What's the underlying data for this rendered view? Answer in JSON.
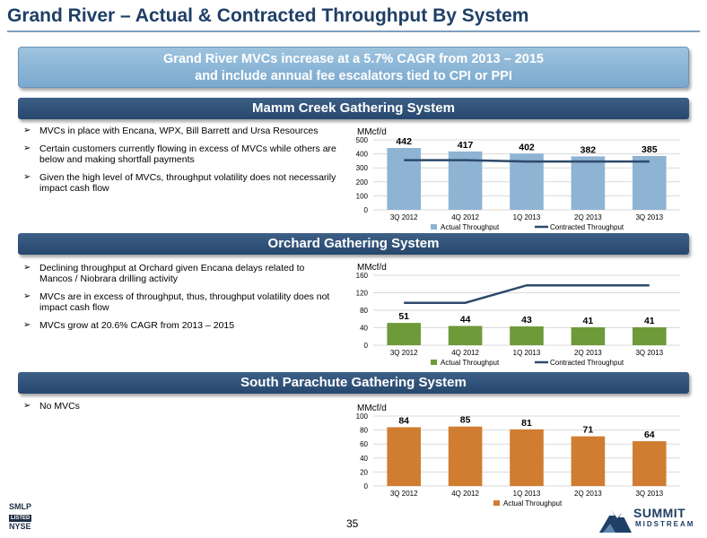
{
  "page": {
    "title": "Grand River – Actual & Contracted Throughput By System",
    "banner": {
      "line1": "Grand River MVCs increase at a 5.7% CAGR from 2013 – 2015",
      "line2": "and include annual fee escalators tied to CPI or PPI"
    },
    "page_number": "35"
  },
  "sections": [
    {
      "title": "Mamm Creek Gathering System",
      "bullets": [
        "MVCs in place with Encana, WPX, Bill Barrett and Ursa Resources",
        "Certain customers currently flowing in excess of MVCs while others are below and making shortfall payments",
        "Given the high level of MVCs, throughput volatility does not necessarily impact cash flow"
      ]
    },
    {
      "title": "Orchard Gathering System",
      "bullets": [
        "Declining throughput at Orchard given Encana delays related to Mancos / Niobrara drilling activity",
        "MVCs are in excess of throughput, thus, throughput volatility does not impact cash flow",
        "MVCs grow at 20.6% CAGR from 2013 – 2015"
      ]
    },
    {
      "title": "South Parachute Gathering System",
      "bullets": [
        "No MVCs"
      ]
    }
  ],
  "chart_data": [
    {
      "type": "bar",
      "ylabel": "MMcf/d",
      "categories": [
        "3Q 2012",
        "4Q 2012",
        "1Q 2013",
        "2Q 2013",
        "3Q 2013"
      ],
      "ylim": [
        0,
        500
      ],
      "yticks": [
        0,
        100,
        200,
        300,
        400,
        500
      ],
      "grid": true,
      "legend_position": "bottom",
      "series": [
        {
          "name": "Actual Throughput",
          "type": "bar",
          "color": "#8fb3d3",
          "values": [
            442,
            417,
            402,
            382,
            385
          ],
          "labels": [
            "442",
            "417",
            "402",
            "382",
            "385"
          ]
        },
        {
          "name": "Contracted Throughput",
          "type": "line",
          "color": "#2d4a6b",
          "values": [
            355,
            355,
            345,
            345,
            345
          ]
        }
      ]
    },
    {
      "type": "bar",
      "ylabel": "MMcf/d",
      "categories": [
        "3Q 2012",
        "4Q 2012",
        "1Q 2013",
        "2Q 2013",
        "3Q 2013"
      ],
      "ylim": [
        0,
        160
      ],
      "yticks": [
        0,
        40,
        80,
        120,
        160
      ],
      "grid": true,
      "legend_position": "bottom",
      "series": [
        {
          "name": "Actual Throughput",
          "type": "bar",
          "color": "#6e9a3a",
          "values": [
            51,
            44,
            43,
            41,
            41
          ],
          "labels": [
            "51",
            "44",
            "43",
            "41",
            "41"
          ]
        },
        {
          "name": "Contracted Throughput",
          "type": "line",
          "color": "#2d4a6b",
          "values": [
            97,
            97,
            137,
            137,
            137
          ]
        }
      ]
    },
    {
      "type": "bar",
      "ylabel": "MMcf/d",
      "categories": [
        "3Q 2012",
        "4Q 2012",
        "1Q 2013",
        "2Q 2013",
        "3Q 2013"
      ],
      "ylim": [
        0,
        100
      ],
      "yticks": [
        0,
        20,
        40,
        60,
        80,
        100
      ],
      "grid": true,
      "legend_position": "bottom",
      "series": [
        {
          "name": "Actual Throughput",
          "type": "bar",
          "color": "#d07d31",
          "values": [
            84,
            85,
            81,
            71,
            64
          ],
          "labels": [
            "84",
            "85",
            "81",
            "71",
            "64"
          ]
        }
      ]
    }
  ],
  "footer": {
    "left_logo": {
      "line1": "SMLP",
      "line2": "LISTED",
      "line3": "NYSE"
    },
    "right_logo": {
      "line1": "SUMMIT",
      "line2": "MIDSTREAM"
    }
  }
}
